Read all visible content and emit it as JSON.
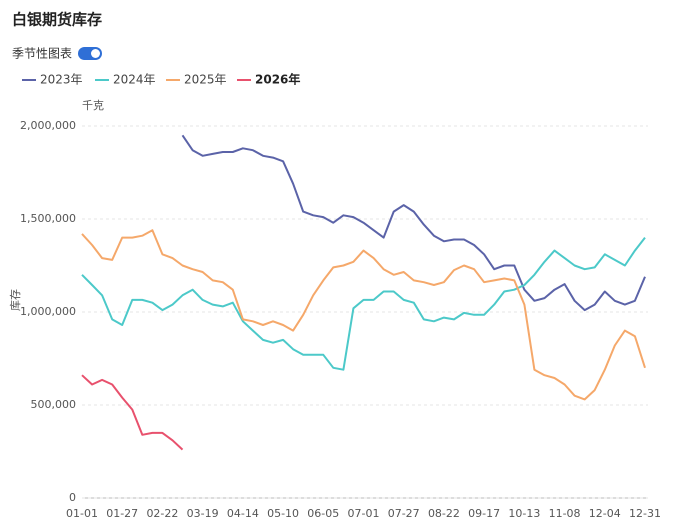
{
  "chart_data": {
    "type": "line",
    "title": "白银期货库存",
    "toggle_label": "季节性图表",
    "y_unit": "千克",
    "ylabel": "库存",
    "grid": true,
    "ylim": [
      0,
      2000000
    ],
    "yticks": [
      0,
      {
        "value": 500000,
        "label": "500,000"
      },
      {
        "value": 1000000,
        "label": "1,000,000"
      },
      {
        "value": 1500000,
        "label": "1,500,000"
      },
      {
        "value": 2000000,
        "label": "2,000,000"
      }
    ],
    "categories": [
      "01-01",
      null,
      null,
      null,
      "01-27",
      null,
      null,
      null,
      "02-22",
      null,
      null,
      null,
      "03-19",
      null,
      null,
      null,
      "04-14",
      null,
      null,
      null,
      "05-10",
      null,
      null,
      null,
      "06-05",
      null,
      null,
      null,
      "07-01",
      null,
      null,
      null,
      "07-27",
      null,
      null,
      null,
      "08-22",
      null,
      null,
      null,
      "09-17",
      null,
      null,
      null,
      "10-13",
      null,
      null,
      null,
      "11-08",
      null,
      null,
      null,
      "12-04",
      null,
      null,
      null,
      "12-31"
    ],
    "series": [
      {
        "name": "2023年",
        "color": "#5b63a8",
        "values": [
          null,
          null,
          null,
          null,
          null,
          null,
          null,
          null,
          null,
          null,
          1950000,
          1870000,
          1840000,
          1850000,
          1860000,
          1860000,
          1880000,
          1870000,
          1840000,
          1830000,
          1810000,
          1690000,
          1540000,
          1520000,
          1510000,
          1480000,
          1520000,
          1510000,
          1480000,
          1440000,
          1400000,
          1540000,
          1575000,
          1540000,
          1470000,
          1410000,
          1380000,
          1390000,
          1390000,
          1360000,
          1310000,
          1230000,
          1250000,
          1250000,
          1120000,
          1060000,
          1075000,
          1120000,
          1150000,
          1060000,
          1010000,
          1040000,
          1110000,
          1060000,
          1040000,
          1060000,
          1190000
        ]
      },
      {
        "name": "2024年",
        "color": "#4cc9c9",
        "values": [
          1200000,
          1145000,
          1090000,
          960000,
          930000,
          1065000,
          1065000,
          1050000,
          1010000,
          1040000,
          1090000,
          1120000,
          1065000,
          1040000,
          1030000,
          1050000,
          950000,
          900000,
          850000,
          835000,
          850000,
          800000,
          770000,
          770000,
          770000,
          700000,
          690000,
          1020000,
          1065000,
          1065000,
          1110000,
          1110000,
          1065000,
          1050000,
          960000,
          950000,
          970000,
          960000,
          995000,
          985000,
          985000,
          1040000,
          1110000,
          1120000,
          1145000,
          1200000,
          1270000,
          1330000,
          1290000,
          1250000,
          1230000,
          1240000,
          1310000,
          1280000,
          1250000,
          1330000,
          1400000
        ]
      },
      {
        "name": "2025年",
        "color": "#f5a86a",
        "values": [
          1420000,
          1360000,
          1290000,
          1280000,
          1400000,
          1400000,
          1410000,
          1440000,
          1310000,
          1290000,
          1250000,
          1230000,
          1215000,
          1170000,
          1160000,
          1120000,
          960000,
          950000,
          930000,
          950000,
          930000,
          900000,
          985000,
          1090000,
          1170000,
          1240000,
          1250000,
          1270000,
          1330000,
          1290000,
          1230000,
          1200000,
          1215000,
          1170000,
          1160000,
          1145000,
          1160000,
          1225000,
          1250000,
          1230000,
          1160000,
          1170000,
          1180000,
          1170000,
          1040000,
          690000,
          660000,
          645000,
          610000,
          550000,
          530000,
          580000,
          690000,
          820000,
          900000,
          870000,
          700000
        ]
      },
      {
        "name": "2026年",
        "color": "#e8516d",
        "values": [
          660000,
          610000,
          635000,
          610000,
          540000,
          475000,
          340000,
          350000,
          350000,
          310000,
          260000,
          null,
          null,
          null,
          null,
          null,
          null,
          null,
          null,
          null,
          null,
          null,
          null,
          null,
          null,
          null,
          null,
          null,
          null,
          null,
          null,
          null,
          null,
          null,
          null,
          null,
          null,
          null,
          null,
          null,
          null,
          null,
          null,
          null,
          null,
          null,
          null,
          null,
          null,
          null,
          null,
          null,
          null,
          null,
          null,
          null,
          null
        ]
      }
    ]
  }
}
